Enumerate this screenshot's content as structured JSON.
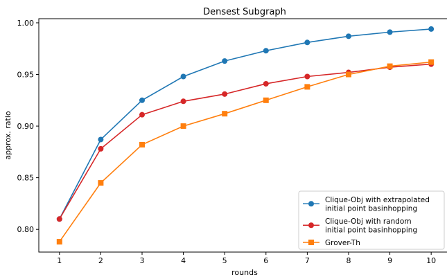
{
  "chart_data": {
    "type": "line",
    "title": "Densest Subgraph",
    "xlabel": "rounds",
    "ylabel": "approx. ratio",
    "x": [
      1,
      2,
      3,
      4,
      5,
      6,
      7,
      8,
      9,
      10
    ],
    "xlim": [
      0.5,
      10.4
    ],
    "ylim": [
      0.778,
      1.004
    ],
    "xticks": [
      1,
      2,
      3,
      4,
      5,
      6,
      7,
      8,
      9,
      10
    ],
    "yticks": [
      0.8,
      0.85,
      0.9,
      0.95,
      1.0
    ],
    "ytick_labels": [
      "0.80",
      "0.85",
      "0.90",
      "0.95",
      "1.00"
    ],
    "grid": false,
    "legend_position": "bottom-right",
    "series": [
      {
        "name": "Clique-Obj with extrapolated initial point basinhopping",
        "legend_lines": [
          "Clique-Obj with extrapolated",
          "initial point basinhopping"
        ],
        "color": "#1f77b4",
        "marker": "circle",
        "values": [
          0.81,
          0.887,
          0.925,
          0.948,
          0.963,
          0.973,
          0.981,
          0.987,
          0.991,
          0.994
        ]
      },
      {
        "name": "Clique-Obj with random initial point basinhopping",
        "legend_lines": [
          "Clique-Obj with random",
          "initial point basinhopping"
        ],
        "color": "#d62728",
        "marker": "circle",
        "values": [
          0.81,
          0.878,
          0.911,
          0.924,
          0.931,
          0.941,
          0.948,
          0.952,
          0.957,
          0.96
        ]
      },
      {
        "name": "Grover-Th",
        "legend_lines": [
          "Grover-Th"
        ],
        "color": "#ff7f0e",
        "marker": "square",
        "values": [
          0.788,
          0.845,
          0.882,
          0.9,
          0.912,
          0.925,
          0.938,
          0.95,
          0.958,
          0.962
        ]
      }
    ]
  }
}
